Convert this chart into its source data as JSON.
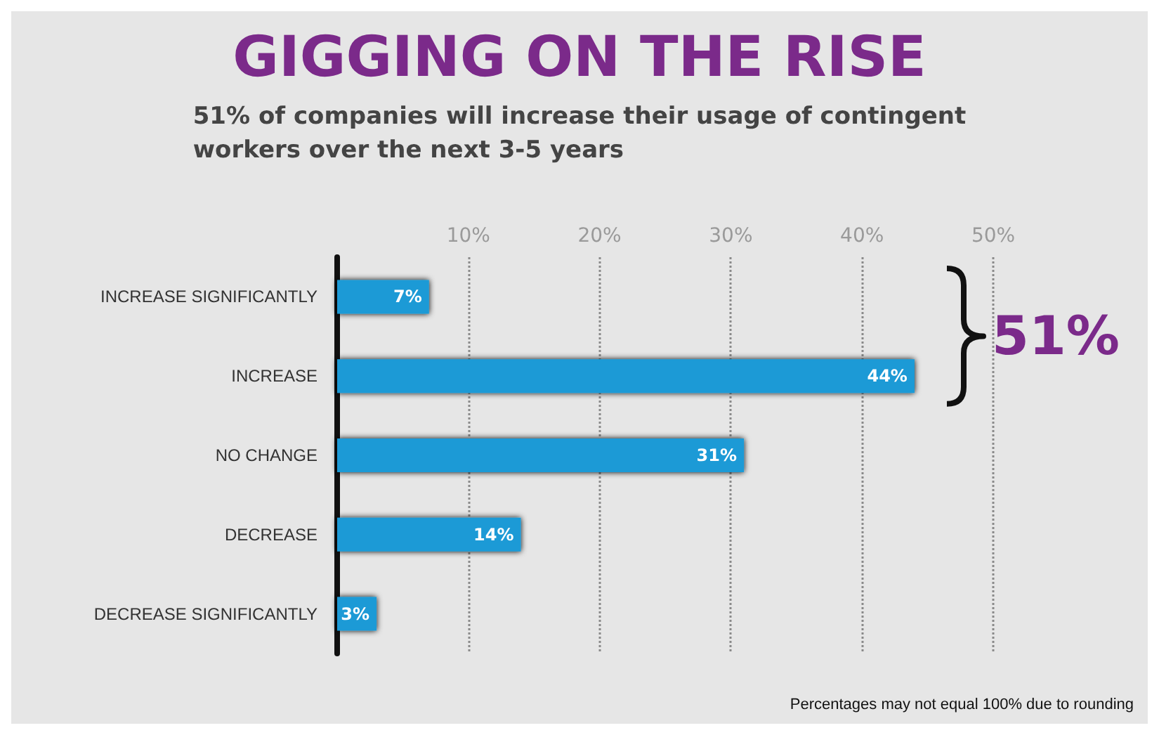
{
  "chart_data": {
    "type": "bar",
    "orientation": "horizontal",
    "title": "GIGGING ON THE RISE",
    "subtitle": "51% of companies will increase their usage of contingent\nworkers over the next 3-5 years",
    "categories": [
      "INCREASE SIGNIFICANTLY",
      "INCREASE",
      "NO CHANGE",
      "DECREASE",
      "DECREASE SIGNIFICANTLY"
    ],
    "values": [
      7,
      44,
      31,
      14,
      3
    ],
    "color": "#1a9ad6",
    "value_labels": [
      "7%",
      "44%",
      "31%",
      "14%",
      "3%"
    ],
    "xlim": [
      0,
      50
    ],
    "xticks": [
      {
        "value": 10,
        "label": "10%"
      },
      {
        "value": 20,
        "label": "20%"
      },
      {
        "value": 30,
        "label": "30%"
      },
      {
        "value": 40,
        "label": "40%"
      },
      {
        "value": 50,
        "label": "50%"
      }
    ],
    "grid": "x",
    "annotations": [
      "51%",
      "Percentages may not equal 100% due to rounding"
    ]
  }
}
